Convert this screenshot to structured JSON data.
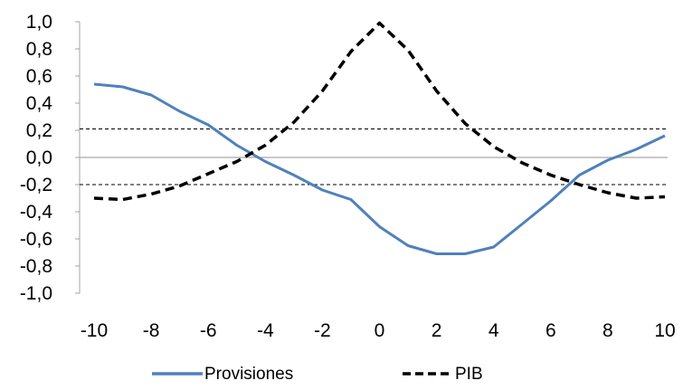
{
  "chart_data": {
    "type": "line",
    "x": [
      -10,
      -9,
      -8,
      -7,
      -6,
      -5,
      -4,
      -3,
      -2,
      -1,
      0,
      1,
      2,
      3,
      4,
      5,
      6,
      7,
      8,
      9,
      10
    ],
    "series": [
      {
        "name": "Provisiones",
        "color": "#4f81bd",
        "style": "solid",
        "values": [
          0.54,
          0.52,
          0.46,
          0.34,
          0.24,
          0.09,
          -0.03,
          -0.13,
          -0.24,
          -0.31,
          -0.51,
          -0.65,
          -0.71,
          -0.71,
          -0.66,
          -0.49,
          -0.32,
          -0.13,
          -0.02,
          0.06,
          0.16
        ]
      },
      {
        "name": "PIB",
        "color": "#000000",
        "style": "dashed",
        "values": [
          -0.3,
          -0.31,
          -0.27,
          -0.21,
          -0.12,
          -0.03,
          0.09,
          0.26,
          0.49,
          0.78,
          0.99,
          0.79,
          0.49,
          0.25,
          0.08,
          -0.04,
          -0.13,
          -0.2,
          -0.26,
          -0.3,
          -0.29
        ]
      }
    ],
    "reference_lines": [
      {
        "y": 0.21,
        "style": "dashed",
        "color": "#000000"
      },
      {
        "y": -0.2,
        "style": "dashed",
        "color": "#000000"
      },
      {
        "y": 0.0,
        "style": "solid",
        "color": "#a6a6a6"
      }
    ],
    "xlim": [
      -10,
      10
    ],
    "ylim": [
      -1.0,
      1.0
    ],
    "x_ticks": [
      "-10",
      "-8",
      "-6",
      "-4",
      "-2",
      "0",
      "2",
      "4",
      "6",
      "8",
      "10"
    ],
    "y_ticks": [
      "1,0",
      "0,8",
      "0,6",
      "0,4",
      "0,2",
      "0,0",
      "-0,2",
      "-0,4",
      "-0,6",
      "-0,8",
      "-1,0"
    ],
    "title": "",
    "xlabel": "",
    "ylabel": "",
    "grid": false,
    "legend": "bottom"
  }
}
